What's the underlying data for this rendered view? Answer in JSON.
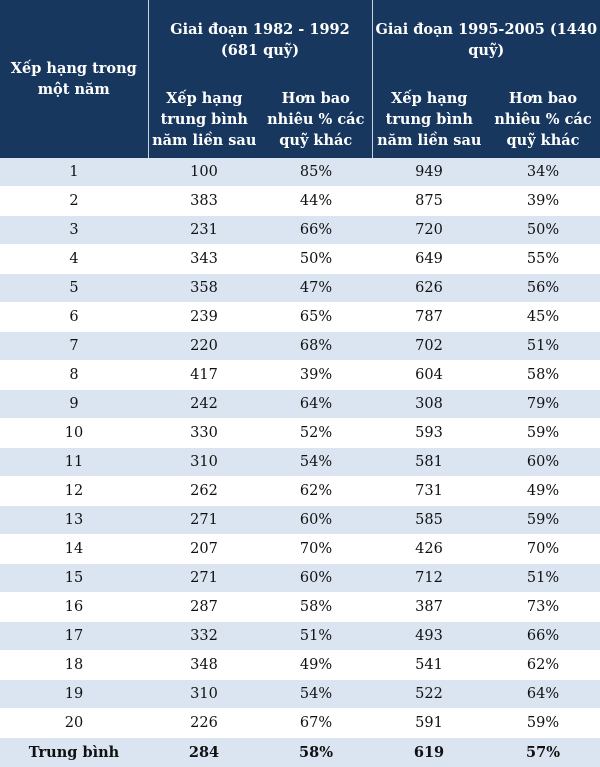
{
  "header": {
    "rank_label": "Xếp hạng trong một năm",
    "period1": "Giai đoạn 1982 - 1992 (681 quỹ)",
    "period2": "Giai đoạn 1995-2005 (1440 quỹ)",
    "col_avg_rank": "Xếp hạng trung bình năm liền sau",
    "col_better_pct": "Hơn bao nhiêu % các quỹ khác"
  },
  "rows": [
    {
      "rank": "1",
      "p1_rank": "100",
      "p1_pct": "85%",
      "p2_rank": "949",
      "p2_pct": "34%"
    },
    {
      "rank": "2",
      "p1_rank": "383",
      "p1_pct": "44%",
      "p2_rank": "875",
      "p2_pct": "39%"
    },
    {
      "rank": "3",
      "p1_rank": "231",
      "p1_pct": "66%",
      "p2_rank": "720",
      "p2_pct": "50%"
    },
    {
      "rank": "4",
      "p1_rank": "343",
      "p1_pct": "50%",
      "p2_rank": "649",
      "p2_pct": "55%"
    },
    {
      "rank": "5",
      "p1_rank": "358",
      "p1_pct": "47%",
      "p2_rank": "626",
      "p2_pct": "56%"
    },
    {
      "rank": "6",
      "p1_rank": "239",
      "p1_pct": "65%",
      "p2_rank": "787",
      "p2_pct": "45%"
    },
    {
      "rank": "7",
      "p1_rank": "220",
      "p1_pct": "68%",
      "p2_rank": "702",
      "p2_pct": "51%"
    },
    {
      "rank": "8",
      "p1_rank": "417",
      "p1_pct": "39%",
      "p2_rank": "604",
      "p2_pct": "58%"
    },
    {
      "rank": "9",
      "p1_rank": "242",
      "p1_pct": "64%",
      "p2_rank": "308",
      "p2_pct": "79%"
    },
    {
      "rank": "10",
      "p1_rank": "330",
      "p1_pct": "52%",
      "p2_rank": "593",
      "p2_pct": "59%"
    },
    {
      "rank": "11",
      "p1_rank": "310",
      "p1_pct": "54%",
      "p2_rank": "581",
      "p2_pct": "60%"
    },
    {
      "rank": "12",
      "p1_rank": "262",
      "p1_pct": "62%",
      "p2_rank": "731",
      "p2_pct": "49%"
    },
    {
      "rank": "13",
      "p1_rank": "271",
      "p1_pct": "60%",
      "p2_rank": "585",
      "p2_pct": "59%"
    },
    {
      "rank": "14",
      "p1_rank": "207",
      "p1_pct": "70%",
      "p2_rank": "426",
      "p2_pct": "70%"
    },
    {
      "rank": "15",
      "p1_rank": "271",
      "p1_pct": "60%",
      "p2_rank": "712",
      "p2_pct": "51%"
    },
    {
      "rank": "16",
      "p1_rank": "287",
      "p1_pct": "58%",
      "p2_rank": "387",
      "p2_pct": "73%"
    },
    {
      "rank": "17",
      "p1_rank": "332",
      "p1_pct": "51%",
      "p2_rank": "493",
      "p2_pct": "66%"
    },
    {
      "rank": "18",
      "p1_rank": "348",
      "p1_pct": "49%",
      "p2_rank": "541",
      "p2_pct": "62%"
    },
    {
      "rank": "19",
      "p1_rank": "310",
      "p1_pct": "54%",
      "p2_rank": "522",
      "p2_pct": "64%"
    },
    {
      "rank": "20",
      "p1_rank": "226",
      "p1_pct": "67%",
      "p2_rank": "591",
      "p2_pct": "59%"
    }
  ],
  "footer": {
    "label": "Trung bình",
    "p1_rank": "284",
    "p1_pct": "58%",
    "p2_rank": "619",
    "p2_pct": "57%"
  }
}
